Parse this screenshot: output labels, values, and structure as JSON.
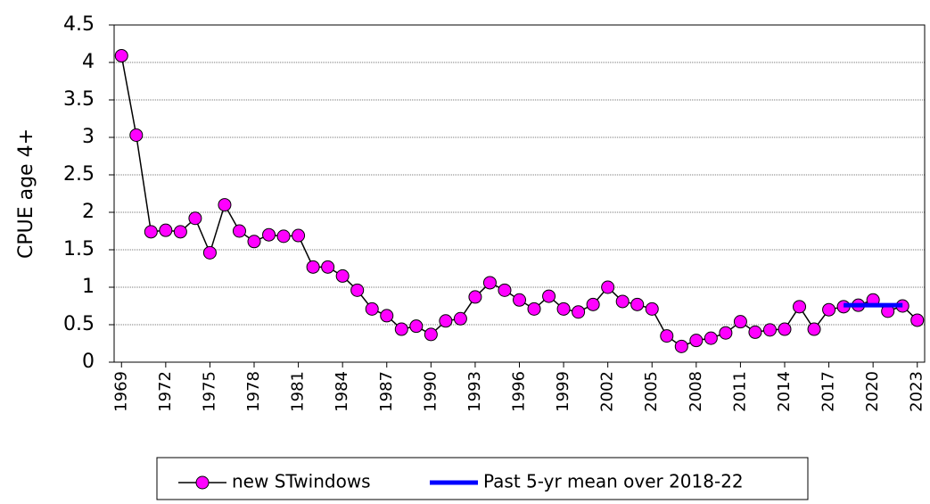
{
  "chart_data": {
    "type": "line",
    "ylabel": "CPUE age 4+",
    "categories": [
      "1969",
      null,
      null,
      "1972",
      null,
      null,
      "1975",
      null,
      null,
      "1978",
      null,
      null,
      "1981",
      null,
      null,
      "1984",
      null,
      null,
      "1987",
      null,
      null,
      "1990",
      null,
      null,
      "1993",
      null,
      null,
      "1996",
      null,
      null,
      "1999",
      null,
      null,
      "2002",
      null,
      null,
      "2005",
      null,
      null,
      "2008",
      null,
      null,
      "2011",
      null,
      null,
      "2014",
      null,
      null,
      "2017",
      null,
      null,
      "2020",
      null,
      null,
      "2023"
    ],
    "series": [
      {
        "name": "new STwindows",
        "color": "#000000",
        "marker_color": "#ff00ff",
        "values": [
          4.09,
          3.03,
          1.74,
          1.76,
          1.74,
          1.92,
          1.46,
          2.1,
          1.75,
          1.61,
          1.7,
          1.68,
          1.69,
          1.27,
          1.27,
          1.15,
          0.96,
          0.71,
          0.62,
          0.44,
          0.48,
          0.37,
          0.55,
          0.58,
          0.87,
          1.06,
          0.96,
          0.83,
          0.71,
          0.88,
          0.71,
          0.67,
          0.77,
          1.0,
          0.81,
          0.77,
          0.71,
          0.35,
          0.21,
          0.29,
          0.32,
          0.39,
          0.54,
          0.4,
          0.43,
          0.44,
          0.74,
          0.44,
          0.7,
          0.74,
          0.76,
          0.83,
          0.68,
          0.75,
          0.56
        ]
      },
      {
        "name": "Past 5-yr mean over 2018-22",
        "color": "#0000ff",
        "values": [
          null,
          null,
          null,
          null,
          null,
          null,
          null,
          null,
          null,
          null,
          null,
          null,
          null,
          null,
          null,
          null,
          null,
          null,
          null,
          null,
          null,
          null,
          null,
          null,
          null,
          null,
          null,
          null,
          null,
          null,
          null,
          null,
          null,
          null,
          null,
          null,
          null,
          null,
          null,
          null,
          null,
          null,
          null,
          null,
          null,
          null,
          null,
          null,
          null,
          0.76,
          0.76,
          0.76,
          0.76,
          0.76,
          null
        ]
      }
    ],
    "ylim": [
      0,
      4.5
    ],
    "yticks": [
      0,
      0.5,
      1,
      1.5,
      2,
      2.5,
      3,
      3.5,
      4,
      4.5
    ],
    "grid": true
  }
}
